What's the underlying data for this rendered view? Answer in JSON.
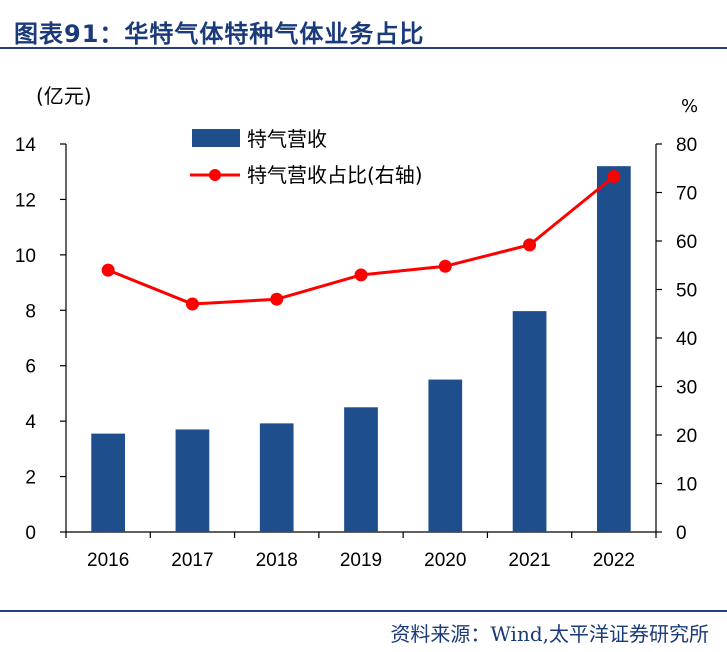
{
  "header": {
    "title": "图表91：华特气体特种气体业务占比"
  },
  "footer": {
    "source": "资料来源：Wind,太平洋证券研究所"
  },
  "chart_data": {
    "type": "bar",
    "categories": [
      "2016",
      "2017",
      "2018",
      "2019",
      "2020",
      "2021",
      "2022"
    ],
    "series": [
      {
        "name": "特气营收",
        "type": "bar",
        "axis": "left",
        "color": "#1f4e8c",
        "values": [
          3.55,
          3.7,
          3.92,
          4.5,
          5.5,
          7.97,
          13.2
        ]
      },
      {
        "name": "特气营收占比(右轴)",
        "type": "line",
        "axis": "right",
        "color": "#ff0000",
        "values": [
          54,
          47,
          48,
          53,
          54.8,
          59.2,
          73.3
        ]
      }
    ],
    "left_axis": {
      "unit": "(亿元)",
      "ylim": [
        0,
        14
      ],
      "ticks": [
        0,
        2,
        4,
        6,
        8,
        10,
        12,
        14
      ]
    },
    "right_axis": {
      "unit": "%",
      "ylim": [
        0,
        80
      ],
      "ticks": [
        0,
        10,
        20,
        30,
        40,
        50,
        60,
        70,
        80
      ]
    },
    "grid": false,
    "legend_position": "top-left"
  }
}
